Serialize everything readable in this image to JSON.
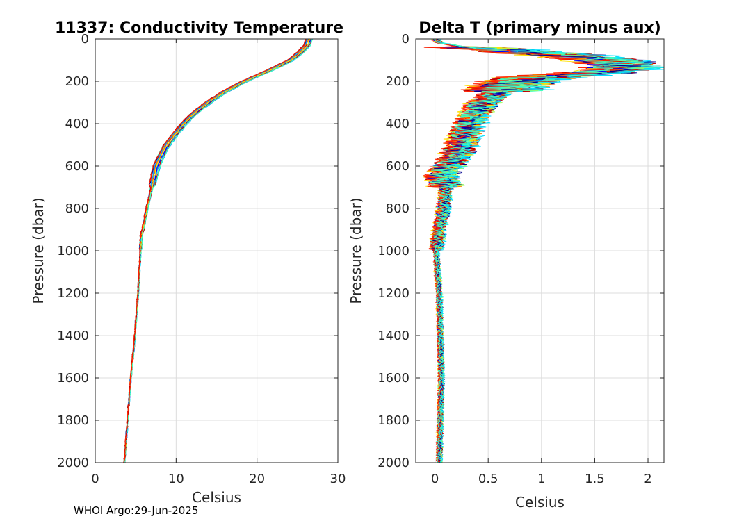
{
  "footer": "WHOI Argo:29-Jun-2025",
  "chart_data": [
    {
      "type": "line",
      "title": "11337: Conductivity Temperature",
      "xlabel": "Celsius",
      "ylabel": "Pressure (dbar)",
      "xlim": [
        0,
        30
      ],
      "ylim": [
        0,
        2000
      ],
      "y_reversed": true,
      "xticks": [
        "0",
        "10",
        "20",
        "30"
      ],
      "yticks": [
        "0",
        "200",
        "400",
        "600",
        "800",
        "1000",
        "1200",
        "1400",
        "1600",
        "1800",
        "2000"
      ],
      "grid": true,
      "colormap": "jet",
      "profile": {
        "pressure": [
          0,
          30,
          60,
          100,
          150,
          200,
          250,
          300,
          350,
          400,
          450,
          500,
          550,
          600,
          700,
          800,
          900,
          930,
          1000,
          1200,
          1400,
          1600,
          1800,
          2000
        ],
        "temperature": [
          26.5,
          26.2,
          25.5,
          24.2,
          21.5,
          18.5,
          16.0,
          14.0,
          12.3,
          11.0,
          9.9,
          8.9,
          8.2,
          7.6,
          7.0,
          6.4,
          5.9,
          5.7,
          5.6,
          5.3,
          4.9,
          4.4,
          4.0,
          3.6
        ]
      }
    },
    {
      "type": "line",
      "title": "Delta T (primary minus aux)",
      "xlabel": "Celsius",
      "ylabel": "Pressure (dbar)",
      "xlim": [
        -0.18,
        2.15
      ],
      "ylim": [
        0,
        2000
      ],
      "y_reversed": true,
      "xticks": [
        "0",
        "0.5",
        "1",
        "1.5",
        "2"
      ],
      "yticks": [
        "0",
        "200",
        "400",
        "600",
        "800",
        "1000",
        "1200",
        "1400",
        "1600",
        "1800",
        "2000"
      ],
      "grid": true,
      "colormap": "jet",
      "profile": {
        "pressure": [
          0,
          20,
          40,
          60,
          80,
          100,
          120,
          140,
          160,
          180,
          200,
          250,
          300,
          350,
          400,
          450,
          500,
          550,
          600,
          650,
          700,
          800,
          900,
          1000,
          1200,
          1400,
          1600,
          1800,
          2000
        ],
        "delta": [
          0.0,
          0.05,
          0.3,
          0.8,
          1.3,
          1.6,
          1.75,
          1.8,
          1.5,
          1.0,
          0.8,
          0.6,
          0.45,
          0.38,
          0.32,
          0.28,
          0.25,
          0.2,
          0.12,
          0.06,
          0.1,
          0.08,
          0.04,
          0.01,
          0.04,
          0.05,
          0.06,
          0.05,
          0.04
        ]
      }
    }
  ]
}
